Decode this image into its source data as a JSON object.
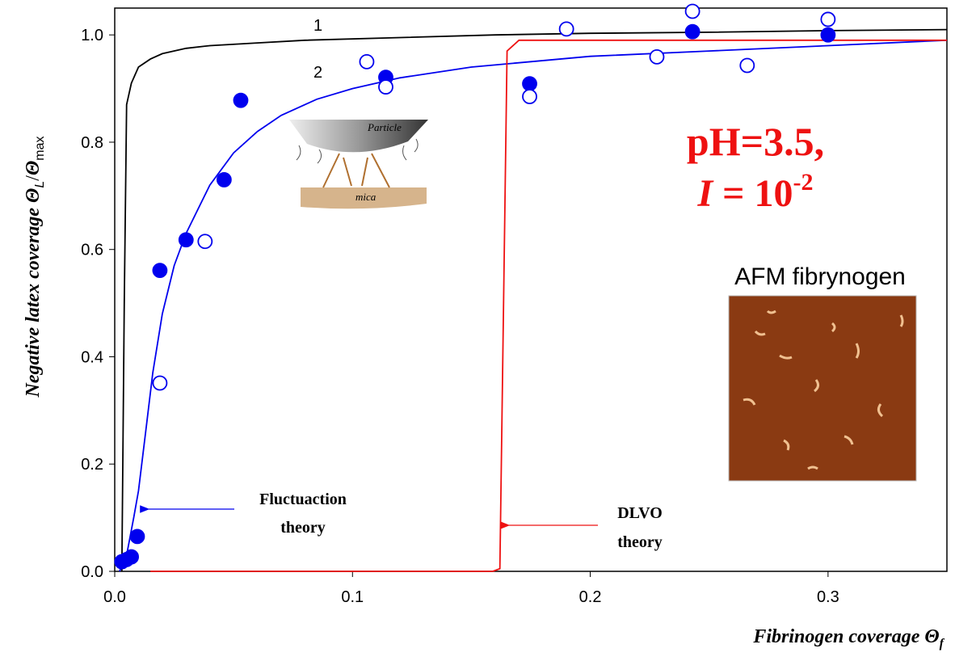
{
  "chart_data": {
    "type": "scatter-line",
    "y_label": {
      "text": "Negative latex coverage",
      "symbol": "Θ",
      "sub": "L",
      "sep": "/",
      "symbol2": "Θ",
      "sub2": "max"
    },
    "x_label": {
      "text": "Fibrinogen coverage",
      "symbol": "Θ",
      "sub": "f"
    },
    "xlim": [
      0,
      0.35
    ],
    "ylim": [
      0,
      1.05
    ],
    "xticks": [
      {
        "value": 0,
        "label": "0.0"
      },
      0.1,
      0.2,
      0.3
    ],
    "yticks": [
      {
        "value": 0,
        "label": "0.0"
      },
      0.2,
      0.4,
      0.6,
      0.8,
      {
        "value": 1,
        "label": "1.0"
      }
    ],
    "lines": [
      {
        "label": "1",
        "color": "#000000",
        "x": [
          0.003,
          0.004,
          0.005,
          0.007,
          0.01,
          0.015,
          0.02,
          0.03,
          0.04,
          0.06,
          0.08,
          0.12,
          0.16,
          0.2,
          0.25,
          0.3,
          0.35
        ],
        "y": [
          0,
          0.5,
          0.87,
          0.91,
          0.94,
          0.955,
          0.965,
          0.975,
          0.98,
          0.985,
          0.99,
          0.995,
          1.0,
          1.003,
          1.005,
          1.008,
          1.01
        ]
      },
      {
        "label": "2",
        "color": "#0000ee",
        "x": [
          0.002,
          0.005,
          0.008,
          0.01,
          0.013,
          0.016,
          0.02,
          0.025,
          0.03,
          0.04,
          0.05,
          0.06,
          0.07,
          0.085,
          0.1,
          0.12,
          0.15,
          0.2,
          0.25,
          0.3,
          0.35
        ],
        "y": [
          0,
          0.03,
          0.1,
          0.15,
          0.26,
          0.37,
          0.48,
          0.57,
          0.63,
          0.72,
          0.78,
          0.82,
          0.85,
          0.88,
          0.9,
          0.92,
          0.94,
          0.96,
          0.97,
          0.98,
          0.99
        ]
      },
      {
        "color": "#ee1111",
        "x": [
          0.015,
          0.159,
          0.162,
          0.165,
          0.17,
          0.2,
          0.35
        ],
        "y": [
          0,
          0,
          0.005,
          0.97,
          0.99,
          0.99,
          0.99
        ]
      }
    ],
    "points": [
      {
        "style": "filled",
        "color": "#0000ee",
        "x": [
          0.003,
          0.005,
          0.007,
          0.0095,
          0.019,
          0.03,
          0.046,
          0.053,
          0.114,
          0.1745,
          0.243,
          0.3
        ],
        "y": [
          0.018,
          0.022,
          0.027,
          0.065,
          0.561,
          0.618,
          0.73,
          0.878,
          0.921,
          0.909,
          1.006,
          1.0
        ]
      },
      {
        "style": "open",
        "color": "#0000ee",
        "x": [
          0.019,
          0.038,
          0.106,
          0.114,
          0.1745,
          0.19,
          0.228,
          0.243,
          0.266,
          0.3
        ],
        "y": [
          0.351,
          0.615,
          0.95,
          0.903,
          0.885,
          1.011,
          0.959,
          1.044,
          0.943,
          1.029
        ]
      }
    ],
    "fluctuation_note": [
      "Fluctuaction",
      "theory"
    ],
    "dlvo_note": [
      "DLVO",
      "theory"
    ],
    "condition": {
      "ph": "pH=3.5,",
      "symbol": "I",
      "eq": " = 10",
      "exp": "-2"
    },
    "afm_label": "AFM fibrynogen",
    "diagram_labels": [
      "Particle",
      "mica"
    ]
  }
}
